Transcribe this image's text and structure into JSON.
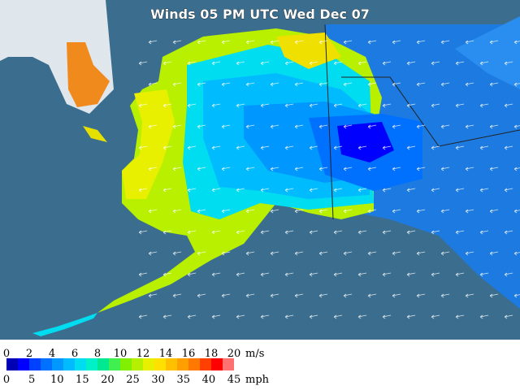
{
  "title": "Winds 05 PM UTC Wed Dec 07",
  "legend": {
    "ms_ticks": [
      0,
      2,
      4,
      6,
      8,
      10,
      12,
      14,
      16,
      18,
      20
    ],
    "ms_unit": "m/s",
    "mph_ticks": [
      0,
      5,
      10,
      15,
      20,
      25,
      30,
      35,
      40,
      45
    ],
    "mph_unit": "mph",
    "colors": [
      "#0000b4",
      "#0000ff",
      "#0040ff",
      "#0070ff",
      "#0098ff",
      "#00bcff",
      "#00dcf0",
      "#00f0c8",
      "#00e890",
      "#40f050",
      "#80f000",
      "#b4f000",
      "#e8f000",
      "#ffe000",
      "#ffc000",
      "#ffa000",
      "#ff7800",
      "#ff4000",
      "#ff0000",
      "#ff7070"
    ]
  }
}
